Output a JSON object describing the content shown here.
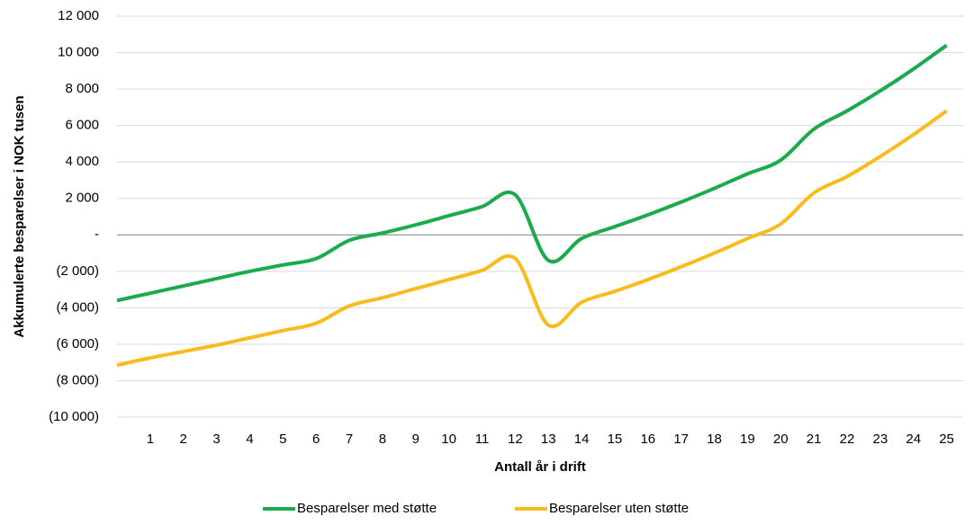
{
  "chart_data": {
    "type": "line",
    "x_label": "Antall år i drift",
    "y_label": "Akkumulerte besparelser i NOK tusen",
    "x": [
      0,
      1,
      2,
      3,
      4,
      5,
      6,
      7,
      8,
      9,
      10,
      11,
      12,
      13,
      14,
      15,
      16,
      17,
      18,
      19,
      20,
      21,
      22,
      23,
      24,
      25
    ],
    "xlim": [
      0,
      25.5
    ],
    "xticks": [
      1,
      2,
      3,
      4,
      5,
      6,
      7,
      8,
      9,
      10,
      11,
      12,
      13,
      14,
      15,
      16,
      17,
      18,
      19,
      20,
      21,
      22,
      23,
      24,
      25
    ],
    "ylim": [
      -10000,
      12000
    ],
    "yticks": [
      {
        "value": -10000,
        "label": "(10 000)"
      },
      {
        "value": -8000,
        "label": "(8 000)"
      },
      {
        "value": -6000,
        "label": "(6 000)"
      },
      {
        "value": -4000,
        "label": "(4 000)"
      },
      {
        "value": -2000,
        "label": "(2 000)"
      },
      {
        "value": 0,
        "label": "-"
      },
      {
        "value": 2000,
        "label": "2 000"
      },
      {
        "value": 4000,
        "label": "4 000"
      },
      {
        "value": 6000,
        "label": "6 000"
      },
      {
        "value": 8000,
        "label": "8 000"
      },
      {
        "value": 10000,
        "label": "10 000"
      },
      {
        "value": 12000,
        "label": "12 000"
      }
    ],
    "grid": true,
    "legend": "bottom",
    "series": [
      {
        "name": "Besparelser med støtte",
        "color": "#1aab4b",
        "values": [
          -3600,
          -3200,
          -2800,
          -2400,
          -2000,
          -1650,
          -1300,
          -300,
          100,
          550,
          1050,
          1550,
          2200,
          -1400,
          -200,
          450,
          1100,
          1800,
          2550,
          3350,
          4100,
          5800,
          6800,
          7900,
          9100,
          10400
        ]
      },
      {
        "name": "Besparelser uten støtte",
        "color": "#f9bb1d",
        "values": [
          -7150,
          -6750,
          -6400,
          -6050,
          -5650,
          -5250,
          -4850,
          -3900,
          -3450,
          -2950,
          -2450,
          -1950,
          -1300,
          -4950,
          -3700,
          -3100,
          -2450,
          -1750,
          -1000,
          -200,
          600,
          2300,
          3200,
          4300,
          5500,
          6800
        ]
      }
    ]
  }
}
